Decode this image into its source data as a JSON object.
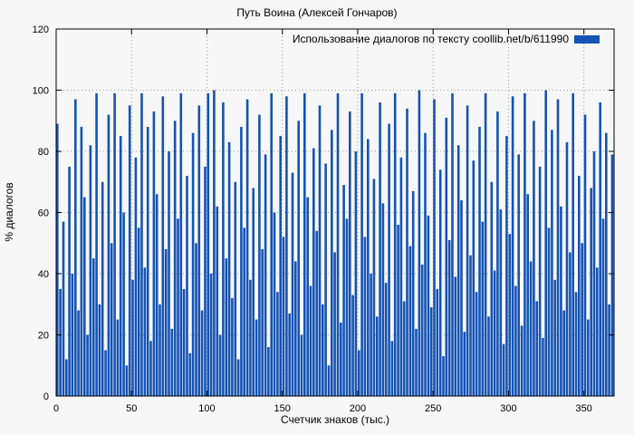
{
  "chart_data": {
    "type": "bar",
    "title": "Путь Воина (Алексей Гончаров)",
    "legend": "Использование диалогов по тексту coollib.net/b/611990",
    "xlabel": "Счетчик знаков (тыс.)",
    "ylabel": "% диалогов",
    "bar_color": "#1553b5",
    "grid": true,
    "legend_position": "top-right",
    "xlim": [
      0,
      370
    ],
    "ylim": [
      0,
      120
    ],
    "x_ticks": [
      0,
      50,
      100,
      150,
      200,
      250,
      300,
      350
    ],
    "y_ticks": [
      0,
      20,
      40,
      60,
      80,
      100,
      120
    ],
    "x_start": 0,
    "x_step": 2,
    "values": [
      89,
      35,
      57,
      12,
      75,
      40,
      97,
      28,
      88,
      65,
      20,
      82,
      45,
      99,
      30,
      70,
      15,
      92,
      50,
      99,
      25,
      85,
      60,
      10,
      95,
      38,
      78,
      55,
      99,
      42,
      88,
      18,
      93,
      66,
      30,
      98,
      48,
      80,
      22,
      90,
      58,
      99,
      35,
      72,
      14,
      86,
      50,
      95,
      28,
      75,
      99,
      40,
      100,
      62,
      20,
      96,
      45,
      83,
      32,
      70,
      12,
      88,
      55,
      97,
      38,
      68,
      25,
      92,
      48,
      79,
      16,
      99,
      60,
      34,
      85,
      52,
      98,
      27,
      73,
      44,
      90,
      20,
      99,
      65,
      36,
      81,
      54,
      95,
      30,
      76,
      10,
      87,
      47,
      99,
      24,
      69,
      58,
      93,
      33,
      80,
      15,
      99,
      52,
      84,
      40,
      71,
      26,
      96,
      63,
      37,
      89,
      18,
      99,
      56,
      78,
      31,
      94,
      49,
      67,
      22,
      100,
      43,
      86,
      59,
      29,
      97,
      35,
      74,
      13,
      91,
      51,
      99,
      39,
      82,
      64,
      21,
      95,
      46,
      77,
      34,
      88,
      57,
      99,
      26,
      70,
      41,
      93,
      61,
      17,
      85,
      53,
      98,
      36,
      79,
      23,
      99,
      66,
      44,
      90,
      31,
      75,
      19,
      100,
      55,
      87,
      38,
      97,
      62,
      28,
      83,
      47,
      99,
      34,
      72,
      50,
      92,
      25,
      68,
      80,
      42,
      96,
      58,
      86,
      30,
      79
    ]
  }
}
